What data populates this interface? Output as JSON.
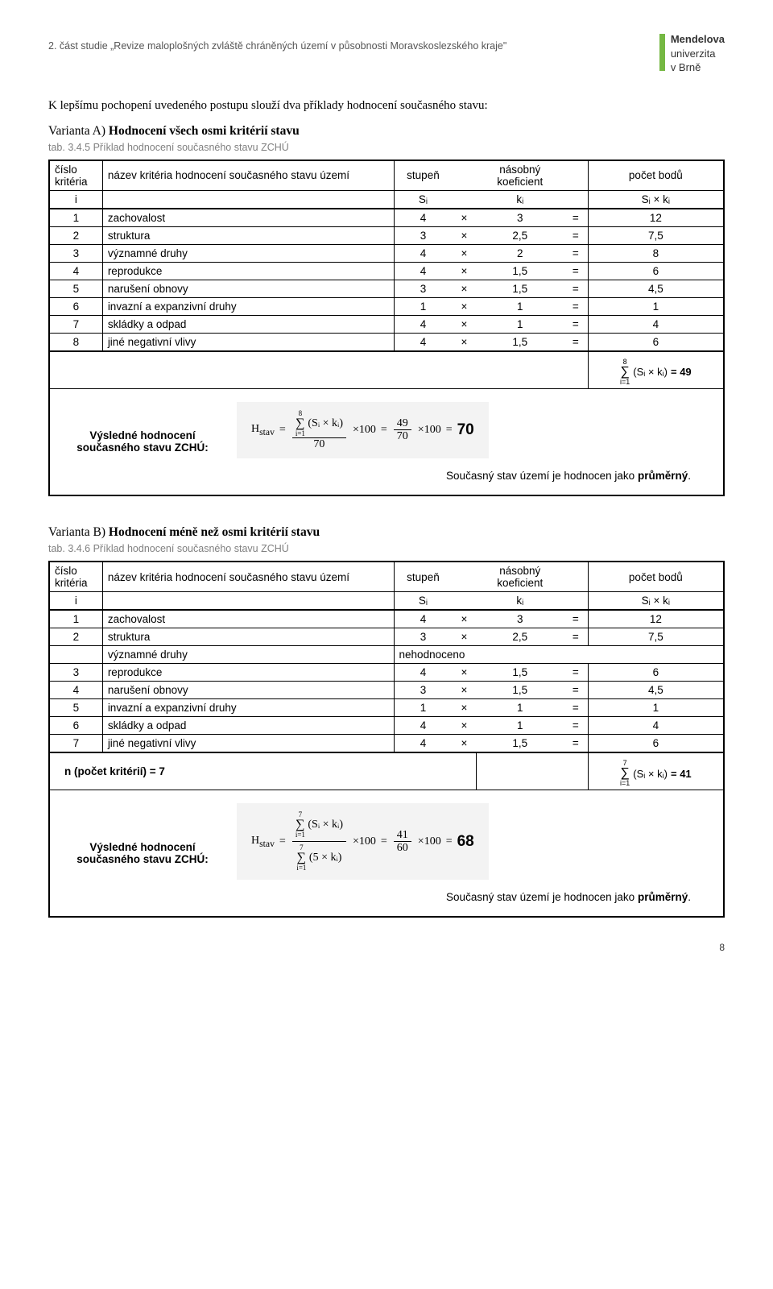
{
  "header": {
    "breadcrumb": "2. část studie „Revize maloplošných zvláště chráněných území v působnosti Moravskoslezského kraje\"",
    "logo_line1": "Mendelova",
    "logo_line2": "univerzita",
    "logo_line3": "v Brně",
    "logo_bar_color": "#75b843"
  },
  "intro": "K lepšímu pochopení uvedeného postupu slouží dva příklady hodnocení současného stavu:",
  "variantA": {
    "heading": "Varianta A) Hodnocení všech osmi kritérií stavu",
    "caption": "tab. 3.4.5 Příklad hodnocení současného stavu ZCHÚ",
    "col_cislo": "číslo kritéria",
    "col_nazev": "název kritéria hodnocení současného stavu území",
    "col_stupen": "stupeň",
    "col_koef": "násobný koeficient",
    "col_body": "počet bodů",
    "hdr_i": "i",
    "hdr_Si": "Sᵢ",
    "hdr_ki": "kᵢ",
    "hdr_Ski": "Sᵢ × kᵢ",
    "rows": [
      {
        "n": "1",
        "name": "zachovalost",
        "s": "4",
        "k": "3",
        "p": "12"
      },
      {
        "n": "2",
        "name": "struktura",
        "s": "3",
        "k": "2,5",
        "p": "7,5"
      },
      {
        "n": "3",
        "name": "významné druhy",
        "s": "4",
        "k": "2",
        "p": "8"
      },
      {
        "n": "4",
        "name": "reprodukce",
        "s": "4",
        "k": "1,5",
        "p": "6"
      },
      {
        "n": "5",
        "name": "narušení obnovy",
        "s": "3",
        "k": "1,5",
        "p": "4,5"
      },
      {
        "n": "6",
        "name": "invazní a expanzivní druhy",
        "s": "1",
        "k": "1",
        "p": "1"
      },
      {
        "n": "7",
        "name": "skládky a odpad",
        "s": "4",
        "k": "1",
        "p": "4"
      },
      {
        "n": "8",
        "name": "jiné negativní vlivy",
        "s": "4",
        "k": "1,5",
        "p": "6"
      }
    ],
    "sum_upper": "8",
    "sum_lower": "i=1",
    "sum_expr": "(Sᵢ × kᵢ)",
    "sum_total": "= 49",
    "result_label": "Výsledné hodnocení současného stavu ZCHÚ:",
    "formula": {
      "H": "Hstav",
      "eq": "=",
      "num_top_limit": "8",
      "num_bot_limit": "i=1",
      "num_expr": "(Sᵢ × kᵢ)",
      "den": "70",
      "times100": "×100",
      "frac2_num": "49",
      "frac2_den": "70",
      "result": "70"
    },
    "conclusion_pre": "Současný stav území je hodnocen jako ",
    "conclusion_bold": "průměrný",
    "conclusion_post": "."
  },
  "variantB": {
    "heading": "Varianta B) Hodnocení méně než osmi kritérií stavu",
    "caption": "tab. 3.4.6 Příklad hodnocení současného stavu ZCHÚ",
    "rows": [
      {
        "n": "1",
        "name": "zachovalost",
        "s": "4",
        "k": "3",
        "p": "12"
      },
      {
        "n": "2",
        "name": "struktura",
        "s": "3",
        "k": "2,5",
        "p": "7,5"
      },
      {
        "n": "",
        "name": "významné druhy",
        "s": "",
        "k": "",
        "p": "",
        "neh": "nehodnoceno"
      },
      {
        "n": "3",
        "name": "reprodukce",
        "s": "4",
        "k": "1,5",
        "p": "6"
      },
      {
        "n": "4",
        "name": "narušení obnovy",
        "s": "3",
        "k": "1,5",
        "p": "4,5"
      },
      {
        "n": "5",
        "name": "invazní a expanzivní druhy",
        "s": "1",
        "k": "1",
        "p": "1"
      },
      {
        "n": "6",
        "name": "skládky a odpad",
        "s": "4",
        "k": "1",
        "p": "4"
      },
      {
        "n": "7",
        "name": "jiné negativní vlivy",
        "s": "4",
        "k": "1,5",
        "p": "6"
      }
    ],
    "n_label": "n (počet kritérií) = 7",
    "sum_upper": "7",
    "sum_lower": "i=1",
    "sum_total": "= 41",
    "result_label": "Výsledné hodnocení současného stavu ZCHÚ:",
    "formula": {
      "num_top_limit": "7",
      "den_top_limit": "7",
      "den_expr": "(5 × kᵢ)",
      "frac2_num": "41",
      "frac2_den": "60",
      "result": "68"
    },
    "conclusion_pre": "Současný stav území je hodnocen jako ",
    "conclusion_bold": "průměrný",
    "conclusion_post": "."
  },
  "pagenum": "8"
}
